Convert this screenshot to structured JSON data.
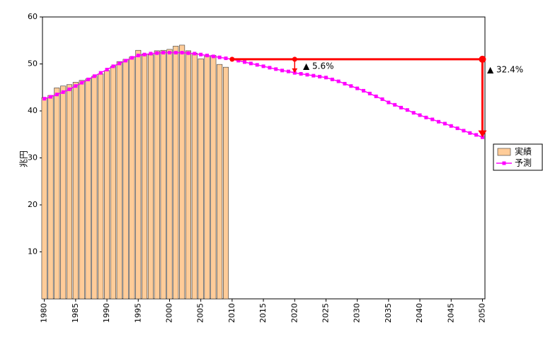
{
  "chart_data": {
    "type": "combo",
    "y_label": "兆円",
    "x": [
      1980,
      1981,
      1982,
      1983,
      1984,
      1985,
      1986,
      1987,
      1988,
      1989,
      1990,
      1991,
      1992,
      1993,
      1994,
      1995,
      1996,
      1997,
      1998,
      1999,
      2000,
      2001,
      2002,
      2003,
      2004,
      2005,
      2006,
      2007,
      2008,
      2009,
      2010,
      2011,
      2012,
      2013,
      2014,
      2015,
      2016,
      2017,
      2018,
      2019,
      2020,
      2021,
      2022,
      2023,
      2024,
      2025,
      2026,
      2027,
      2028,
      2029,
      2030,
      2031,
      2032,
      2033,
      2034,
      2035,
      2036,
      2037,
      2038,
      2039,
      2040,
      2041,
      2042,
      2043,
      2044,
      2045,
      2046,
      2047,
      2048,
      2049,
      2050
    ],
    "series": [
      {
        "name": "実績",
        "type": "bar",
        "color": "#ffcc99",
        "values": [
          42.8,
          43.3,
          44.9,
          45.3,
          45.6,
          46.1,
          46.5,
          46.8,
          47.4,
          47.9,
          48.6,
          49.5,
          50.5,
          51.0,
          51.5,
          52.9,
          52.1,
          52.0,
          52.8,
          52.9,
          53.1,
          53.8,
          54.0,
          52.8,
          52.3,
          51.1,
          51.7,
          51.8,
          49.9,
          49.3,
          null,
          null,
          null,
          null,
          null,
          null,
          null,
          null,
          null,
          null,
          null,
          null,
          null,
          null,
          null,
          null,
          null,
          null,
          null,
          null,
          null,
          null,
          null,
          null,
          null,
          null,
          null,
          null,
          null,
          null,
          null,
          null,
          null,
          null,
          null,
          null,
          null,
          null,
          null,
          null,
          null
        ]
      },
      {
        "name": "予測",
        "type": "line",
        "color": "#ff00ff",
        "values": [
          42.6,
          43.0,
          43.5,
          44.0,
          44.6,
          45.3,
          46.0,
          46.7,
          47.4,
          48.1,
          48.8,
          49.5,
          50.1,
          50.7,
          51.3,
          51.8,
          52.0,
          52.2,
          52.3,
          52.4,
          52.4,
          52.4,
          52.4,
          52.3,
          52.2,
          52.0,
          51.8,
          51.6,
          51.4,
          51.2,
          51.0,
          50.7,
          50.4,
          50.1,
          49.8,
          49.5,
          49.2,
          48.9,
          48.6,
          48.4,
          48.1,
          47.9,
          47.7,
          47.5,
          47.3,
          47.1,
          46.7,
          46.3,
          45.8,
          45.3,
          44.8,
          44.3,
          43.7,
          43.1,
          42.5,
          41.8,
          41.3,
          40.7,
          40.2,
          39.6,
          39.1,
          38.6,
          38.2,
          37.7,
          37.3,
          36.8,
          36.3,
          35.8,
          35.3,
          34.9,
          34.4
        ]
      }
    ],
    "annotations": [
      "▲ 5.6%",
      "▲ 32.4%"
    ],
    "annotation_color": "#ff0000",
    "xlim": [
      1979.7,
      2050.4
    ],
    "xticks": [
      1980,
      1985,
      1990,
      1995,
      2000,
      2005,
      2010,
      2015,
      2020,
      2025,
      2030,
      2035,
      2040,
      2045,
      2050
    ],
    "ylim": [
      0,
      60
    ],
    "yticks": [
      10,
      20,
      30,
      40,
      50,
      60
    ]
  }
}
